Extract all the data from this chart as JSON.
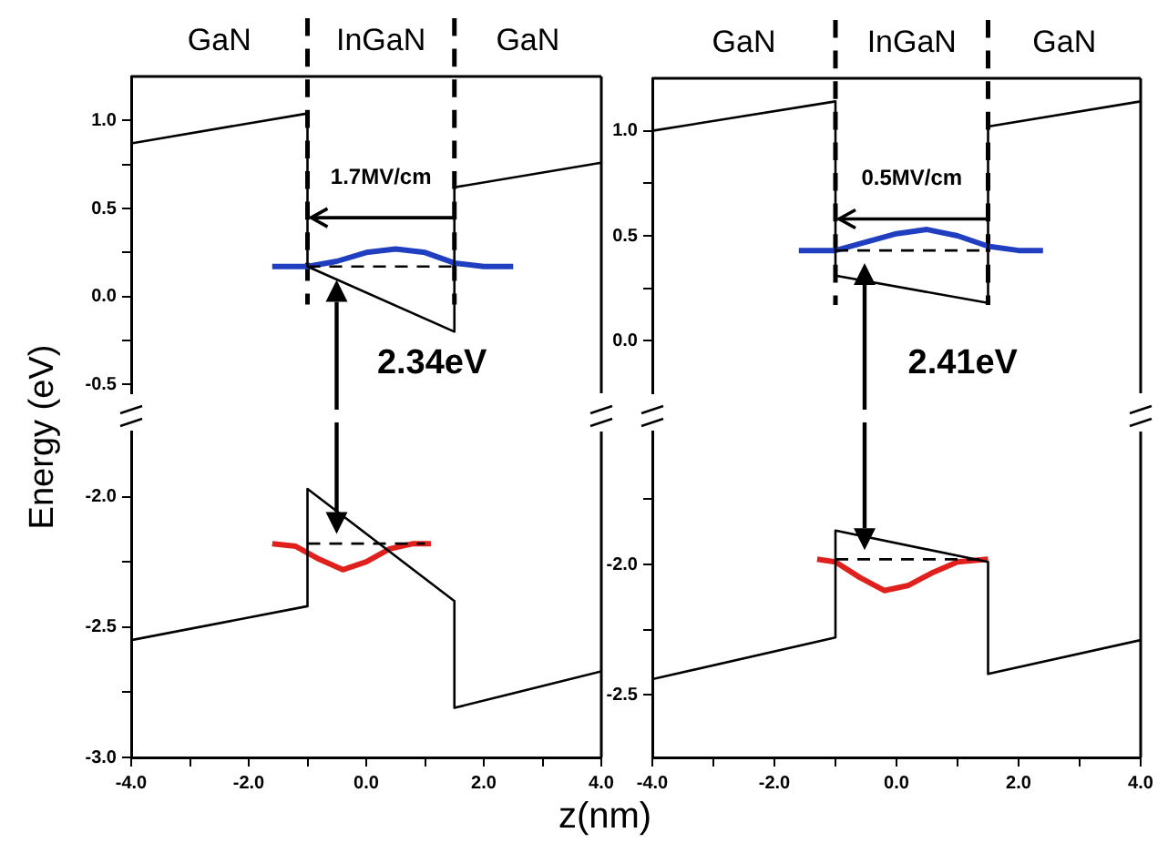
{
  "chart_data": [
    {
      "type": "line",
      "ylabel": "Energy (eV)",
      "marker": "none",
      "grid": false,
      "legend": false,
      "tick_labels": "y",
      "xlim": [
        -4,
        4
      ],
      "ylim": [
        -0.55,
        1.25
      ],
      "yticks": [
        {
          "value": -0.5,
          "label": "-0.5"
        },
        {
          "value": -0.25,
          "label": null
        },
        {
          "value": 0,
          "label": "0.0"
        },
        {
          "value": 0.25,
          "label": null
        },
        {
          "value": 0.5,
          "label": "0.5"
        },
        {
          "value": 0.75,
          "label": null
        },
        {
          "value": 1,
          "label": "1.0"
        }
      ],
      "series": [
        {
          "color": "#000000",
          "x": [
            -4,
            -1,
            -1,
            1.5,
            1.5,
            4
          ],
          "values": [
            0.87,
            1.04,
            0.17,
            -0.2,
            0.62,
            0.76
          ]
        },
        {
          "color": "#000000",
          "line_style": "dashed",
          "x": [
            -1,
            1.5
          ],
          "values": [
            0.17,
            0.17
          ]
        },
        {
          "color": "#1f3fc0",
          "x": [
            -1.6,
            -1,
            -0.5,
            0,
            0.5,
            1,
            1.5,
            2,
            2.5
          ],
          "values": [
            0.17,
            0.17,
            0.2,
            0.25,
            0.27,
            0.25,
            0.19,
            0.17,
            0.17
          ]
        }
      ],
      "ref_lines": [
        {
          "axis": "x",
          "value": -1,
          "color": "#000000",
          "line_style": "dashed"
        },
        {
          "axis": "x",
          "value": 1.5,
          "color": "#000000",
          "line_style": "dashed"
        }
      ],
      "annotations": [
        "GaN",
        "InGaN",
        "GaN",
        "1.7MV/cm",
        "2.34eV"
      ]
    },
    {
      "type": "line",
      "marker": "none",
      "grid": false,
      "legend": false,
      "xlim": [
        -4,
        4
      ],
      "ylim": [
        -3,
        -1.75
      ],
      "xticks": [
        {
          "value": -4,
          "label": "-4.0"
        },
        {
          "value": -3,
          "label": null
        },
        {
          "value": -2,
          "label": "-2.0"
        },
        {
          "value": -1,
          "label": null
        },
        {
          "value": 0,
          "label": "0.0"
        },
        {
          "value": 1,
          "label": null
        },
        {
          "value": 2,
          "label": "2.0"
        },
        {
          "value": 3,
          "label": null
        },
        {
          "value": 4,
          "label": "4.0"
        }
      ],
      "yticks": [
        {
          "value": -3,
          "label": "-3.0"
        },
        {
          "value": -2.75,
          "label": null
        },
        {
          "value": -2.5,
          "label": "-2.5"
        },
        {
          "value": -2.25,
          "label": null
        },
        {
          "value": -2,
          "label": "-2.0"
        }
      ],
      "series": [
        {
          "color": "#000000",
          "x": [
            -4,
            -1,
            -1,
            1.5,
            1.5,
            4
          ],
          "values": [
            -2.55,
            -2.42,
            -1.97,
            -2.4,
            -2.81,
            -2.67
          ]
        },
        {
          "color": "#000000",
          "line_style": "dashed",
          "x": [
            -1,
            1
          ],
          "values": [
            -2.18,
            -2.18
          ]
        },
        {
          "color": "#e0201c",
          "x": [
            -1.6,
            -1.2,
            -0.8,
            -0.4,
            0,
            0.4,
            0.8,
            1.1
          ],
          "values": [
            -2.18,
            -2.19,
            -2.24,
            -2.28,
            -2.25,
            -2.2,
            -2.18,
            -2.18
          ]
        }
      ]
    },
    {
      "type": "line",
      "marker": "none",
      "grid": false,
      "legend": false,
      "tick_labels": "y",
      "xlim": [
        -4,
        4
      ],
      "ylim": [
        -0.25,
        1.25
      ],
      "yticks": [
        {
          "value": 0,
          "label": "0.0"
        },
        {
          "value": 0.25,
          "label": null
        },
        {
          "value": 0.5,
          "label": "0.5"
        },
        {
          "value": 0.75,
          "label": null
        },
        {
          "value": 1,
          "label": "1.0"
        }
      ],
      "series": [
        {
          "color": "#000000",
          "x": [
            -4,
            -1,
            -1,
            1.5,
            1.5,
            4
          ],
          "values": [
            1.0,
            1.14,
            0.31,
            0.18,
            1.02,
            1.14
          ]
        },
        {
          "color": "#000000",
          "line_style": "dashed",
          "x": [
            -1,
            1.5
          ],
          "values": [
            0.43,
            0.43
          ]
        },
        {
          "color": "#1f3fc0",
          "x": [
            -1.6,
            -1,
            -0.5,
            0,
            0.5,
            1,
            1.5,
            2,
            2.4
          ],
          "values": [
            0.43,
            0.43,
            0.47,
            0.51,
            0.53,
            0.5,
            0.45,
            0.43,
            0.43
          ]
        }
      ],
      "ref_lines": [
        {
          "axis": "x",
          "value": -1,
          "color": "#000000",
          "line_style": "dashed"
        },
        {
          "axis": "x",
          "value": 1.5,
          "color": "#000000",
          "line_style": "dashed"
        }
      ],
      "annotations": [
        "GaN",
        "InGaN",
        "GaN",
        "0.5MV/cm",
        "2.41eV"
      ]
    },
    {
      "type": "line",
      "xlabel": "z(nm)",
      "marker": "none",
      "grid": false,
      "legend": false,
      "xlim": [
        -4,
        4
      ],
      "ylim": [
        -2.74,
        -1.49
      ],
      "xticks": [
        {
          "value": -4,
          "label": "-4.0"
        },
        {
          "value": -3,
          "label": null
        },
        {
          "value": -2,
          "label": "-2.0"
        },
        {
          "value": -1,
          "label": null
        },
        {
          "value": 0,
          "label": "0.0"
        },
        {
          "value": 1,
          "label": null
        },
        {
          "value": 2,
          "label": "2.0"
        },
        {
          "value": 3,
          "label": null
        },
        {
          "value": 4,
          "label": "4.0"
        }
      ],
      "yticks": [
        {
          "value": -2.5,
          "label": "-2.5"
        },
        {
          "value": -2.25,
          "label": null
        },
        {
          "value": -2,
          "label": "-2.0"
        },
        {
          "value": -1.75,
          "label": null
        }
      ],
      "series": [
        {
          "color": "#000000",
          "x": [
            -4,
            -1,
            -1,
            1.5,
            1.5,
            4
          ],
          "values": [
            -2.44,
            -2.28,
            -1.87,
            -1.99,
            -2.42,
            -2.29
          ]
        },
        {
          "color": "#000000",
          "line_style": "dashed",
          "x": [
            -1,
            1.5
          ],
          "values": [
            -1.98,
            -1.98
          ]
        },
        {
          "color": "#e0201c",
          "x": [
            -1.3,
            -1,
            -0.6,
            -0.2,
            0.2,
            0.6,
            1,
            1.5
          ],
          "values": [
            -1.98,
            -1.99,
            -2.05,
            -2.1,
            -2.08,
            -2.03,
            -1.99,
            -1.98
          ]
        }
      ]
    }
  ]
}
